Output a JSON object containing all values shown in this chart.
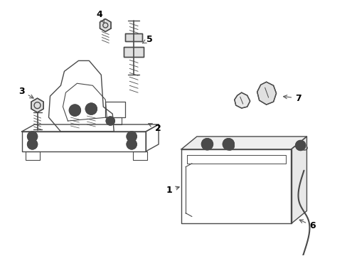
{
  "background_color": "#ffffff",
  "line_color": "#4a4a4a",
  "label_color": "#000000",
  "figsize": [
    4.89,
    3.6
  ],
  "dpi": 100,
  "label_fontsize": 9
}
